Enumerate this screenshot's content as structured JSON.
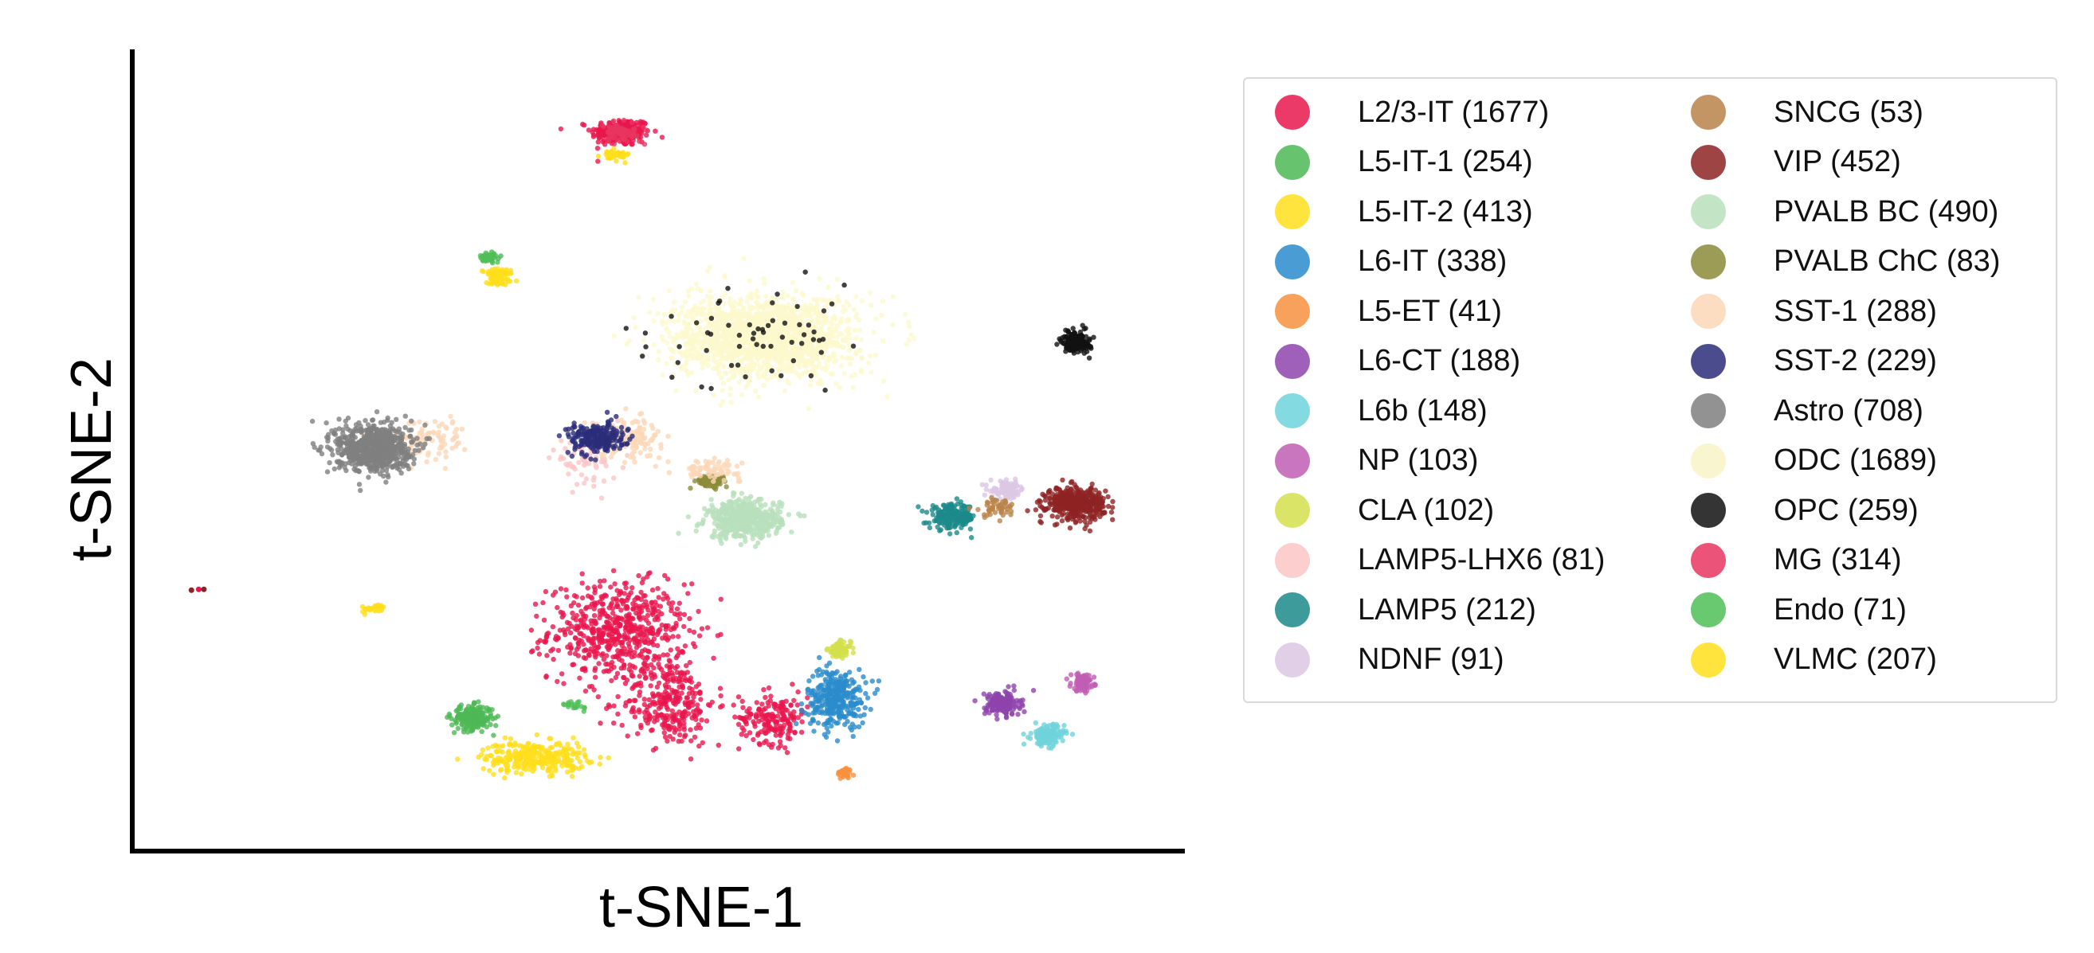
{
  "chart_data": {
    "type": "scatter",
    "xlabel": "t-SNE-1",
    "ylabel": "t-SNE-2",
    "grid": false,
    "xticks": false,
    "yticks": false,
    "xlim": [
      0,
      1000
    ],
    "ylim": [
      0,
      1000
    ],
    "legend_position": "right",
    "legend_columns": 2,
    "series": [
      {
        "name": "L2/3-IT (1677)",
        "color": "#e8174d",
        "clusters": [
          {
            "x": 463,
            "y": 903,
            "sx": 26,
            "sy": 16,
            "n": 220
          },
          {
            "x": 460,
            "y": 270,
            "sx": 60,
            "sy": 55,
            "n": 600
          },
          {
            "x": 510,
            "y": 180,
            "sx": 40,
            "sy": 50,
            "n": 300
          },
          {
            "x": 610,
            "y": 160,
            "sx": 30,
            "sy": 30,
            "n": 180
          }
        ]
      },
      {
        "name": "L5-IT-1 (254)",
        "color": "#4db855",
        "clusters": [
          {
            "x": 320,
            "y": 160,
            "sx": 18,
            "sy": 14,
            "n": 200
          },
          {
            "x": 340,
            "y": 745,
            "sx": 6,
            "sy": 5,
            "n": 15
          }
        ]
      },
      {
        "name": "L5-IT-2 (413)",
        "color": "#ffdf1c",
        "clusters": [
          {
            "x": 380,
            "y": 110,
            "sx": 45,
            "sy": 18,
            "n": 300
          },
          {
            "x": 345,
            "y": 725,
            "sx": 14,
            "sy": 6,
            "n": 45
          },
          {
            "x": 460,
            "y": 873,
            "sx": 10,
            "sy": 6,
            "n": 30
          },
          {
            "x": 220,
            "y": 297,
            "sx": 5,
            "sy": 4,
            "n": 15
          }
        ]
      },
      {
        "name": "L6-IT (338)",
        "color": "#2a8ccc",
        "clusters": [
          {
            "x": 670,
            "y": 185,
            "sx": 26,
            "sy": 34,
            "n": 320
          }
        ]
      },
      {
        "name": "L5-ET (41)",
        "color": "#f7903e",
        "clusters": [
          {
            "x": 678,
            "y": 90,
            "sx": 6,
            "sy": 6,
            "n": 40
          }
        ]
      },
      {
        "name": "L6-CT (188)",
        "color": "#8e44ad",
        "clusters": [
          {
            "x": 830,
            "y": 178,
            "sx": 15,
            "sy": 14,
            "n": 170
          }
        ]
      },
      {
        "name": "L6b (148)",
        "color": "#6fd3dc",
        "clusters": [
          {
            "x": 874,
            "y": 138,
            "sx": 14,
            "sy": 12,
            "n": 140
          }
        ]
      },
      {
        "name": "NP (103)",
        "color": "#c05eb4",
        "clusters": [
          {
            "x": 907,
            "y": 205,
            "sx": 10,
            "sy": 10,
            "n": 100
          }
        ]
      },
      {
        "name": "CLA (102)",
        "color": "#d3e04c",
        "clusters": [
          {
            "x": 673,
            "y": 246,
            "sx": 10,
            "sy": 9,
            "n": 100
          }
        ]
      },
      {
        "name": "LAMP5-LHX6 (81)",
        "color": "#fbc6c6",
        "clusters": [
          {
            "x": 430,
            "y": 490,
            "sx": 30,
            "sy": 30,
            "n": 80
          }
        ]
      },
      {
        "name": "LAMP5 (212)",
        "color": "#1b8a8a",
        "clusters": [
          {
            "x": 782,
            "y": 415,
            "sx": 20,
            "sy": 14,
            "n": 200
          }
        ]
      },
      {
        "name": "NDNF (91)",
        "color": "#dcc7e3",
        "clusters": [
          {
            "x": 835,
            "y": 449,
            "sx": 15,
            "sy": 10,
            "n": 90
          }
        ]
      },
      {
        "name": "SNCG (53)",
        "color": "#b9834a",
        "clusters": [
          {
            "x": 823,
            "y": 427,
            "sx": 20,
            "sy": 12,
            "n": 50
          }
        ]
      },
      {
        "name": "VIP (452)",
        "color": "#8e2323",
        "clusters": [
          {
            "x": 900,
            "y": 432,
            "sx": 25,
            "sy": 18,
            "n": 440
          }
        ]
      },
      {
        "name": "PVALB BC (490)",
        "color": "#b8e0bb",
        "clusters": [
          {
            "x": 582,
            "y": 412,
            "sx": 32,
            "sy": 22,
            "n": 480
          }
        ]
      },
      {
        "name": "PVALB ChC (83)",
        "color": "#8b8b3a",
        "clusters": [
          {
            "x": 550,
            "y": 460,
            "sx": 14,
            "sy": 8,
            "n": 80
          }
        ]
      },
      {
        "name": "SST-1 (288)",
        "color": "#fdd7b6",
        "clusters": [
          {
            "x": 470,
            "y": 515,
            "sx": 30,
            "sy": 22,
            "n": 130
          },
          {
            "x": 280,
            "y": 515,
            "sx": 40,
            "sy": 25,
            "n": 90
          },
          {
            "x": 550,
            "y": 475,
            "sx": 25,
            "sy": 10,
            "n": 70
          }
        ]
      },
      {
        "name": "SST-2 (229)",
        "color": "#2b2d7a",
        "clusters": [
          {
            "x": 440,
            "y": 515,
            "sx": 25,
            "sy": 18,
            "n": 220
          }
        ]
      },
      {
        "name": "Astro (708)",
        "color": "#7f7f7f",
        "clusters": [
          {
            "x": 225,
            "y": 503,
            "sx": 33,
            "sy": 28,
            "n": 700
          }
        ]
      },
      {
        "name": "ODC (1689)",
        "color": "#fdf9cd",
        "clusters": [
          {
            "x": 600,
            "y": 643,
            "sx": 80,
            "sy": 48,
            "n": 1650
          }
        ]
      },
      {
        "name": "OPC (259)",
        "color": "#111111",
        "clusters": [
          {
            "x": 901,
            "y": 637,
            "sx": 12,
            "sy": 12,
            "n": 190
          },
          {
            "x": 600,
            "y": 643,
            "sx": 90,
            "sy": 55,
            "n": 60
          }
        ]
      },
      {
        "name": "MG (314)",
        "color": "#e83560",
        "clusters": [
          {
            "x": 463,
            "y": 903,
            "sx": 20,
            "sy": 12,
            "n": 80
          }
        ]
      },
      {
        "name": "Endo (71)",
        "color": "#4fbf57",
        "clusters": [
          {
            "x": 335,
            "y": 745,
            "sx": 7,
            "sy": 5,
            "n": 45
          },
          {
            "x": 420,
            "y": 175,
            "sx": 10,
            "sy": 8,
            "n": 20
          }
        ]
      },
      {
        "name": "VLMC (207)",
        "color": "#ffdf1c",
        "clusters": [
          {
            "x": 345,
            "y": 715,
            "sx": 12,
            "sy": 6,
            "n": 60
          },
          {
            "x": 230,
            "y": 300,
            "sx": 5,
            "sy": 4,
            "n": 15
          },
          {
            "x": 455,
            "y": 877,
            "sx": 8,
            "sy": 5,
            "n": 20
          }
        ]
      }
    ],
    "outliers": [
      {
        "x": 57,
        "y": 323,
        "color": "#e8174d"
      },
      {
        "x": 62,
        "y": 323,
        "color": "#8e2323"
      },
      {
        "x": 50,
        "y": 322,
        "color": "#8e2323"
      }
    ]
  }
}
